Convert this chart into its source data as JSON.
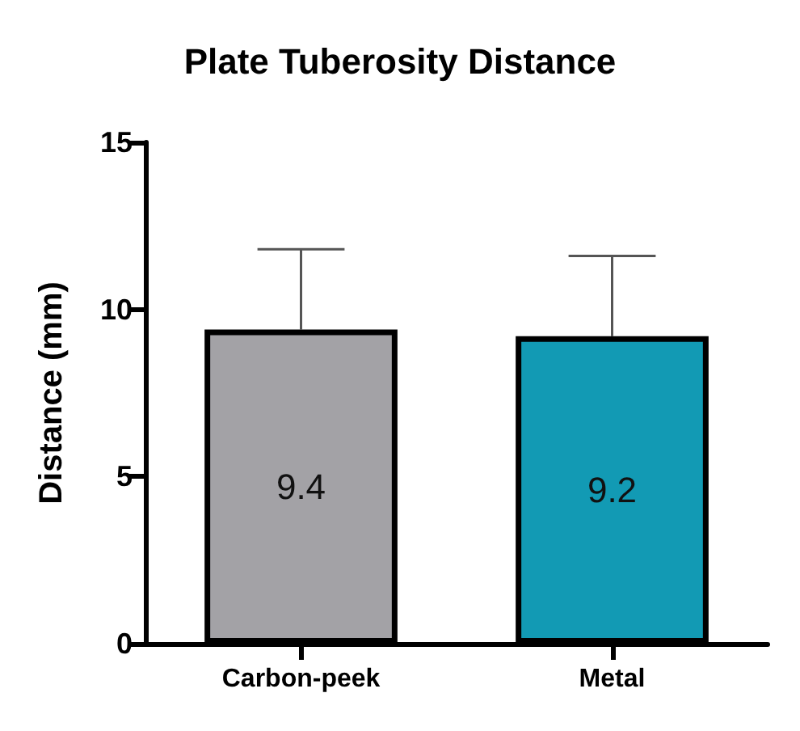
{
  "chart_data": {
    "type": "bar",
    "title": "Plate Tuberosity Distance",
    "ylabel": "Distance (mm)",
    "categories": [
      "Carbon-peek",
      "Metal"
    ],
    "values": [
      9.4,
      9.2
    ],
    "colors": [
      "#a3a2a6",
      "#129ab4"
    ],
    "errors": [
      [
        9.4,
        11.8
      ],
      [
        9.2,
        11.6
      ]
    ],
    "ylim": [
      0,
      15
    ],
    "yticks": [
      0,
      5,
      10,
      15
    ],
    "grid": false,
    "data_labels": true
  }
}
